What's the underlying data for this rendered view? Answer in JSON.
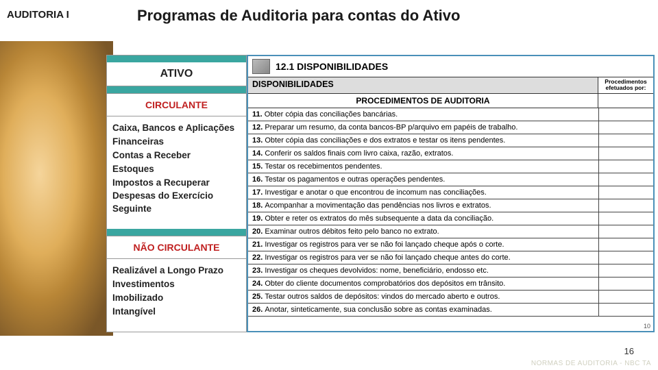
{
  "header": {
    "course_label": "AUDITORIA I",
    "page_title": "Programas de Auditoria para contas do Ativo"
  },
  "ativo_panel": {
    "teal_color": "#3aa6a0",
    "header": "ATIVO",
    "circulante_label": "CIRCULANTE",
    "circulante_items": [
      "Caixa, Bancos e Aplicações",
      "Financeiras",
      "Contas a Receber",
      "Estoques",
      "Impostos a Recuperar",
      "Despesas do Exercício Seguinte"
    ],
    "nao_circulante_label": "NÃO CIRCULANTE",
    "nao_circulante_items": [
      "Realizável a Longo Prazo",
      "Investimentos",
      "Imobilizado",
      "Intangível"
    ]
  },
  "proc_panel": {
    "border_color": "#4a90b8",
    "section_title": "12.1 DISPONIBILIDADES",
    "disponibilidades_label": "DISPONIBILIDADES",
    "right_header": "Procedimentos efetuados por:",
    "sub_header": "PROCEDIMENTOS DE AUDITORIA",
    "rows": [
      {
        "n": "11.",
        "t": "Obter cópia das conciliações bancárias."
      },
      {
        "n": "12.",
        "t": "Preparar um resumo, da conta bancos-BP p/arquivo em papéis de trabalho."
      },
      {
        "n": "13.",
        "t": "Obter cópia das conciliações e dos extratos e testar os itens pendentes."
      },
      {
        "n": "14.",
        "t": "Conferir os saldos finais com livro caixa, razão, extratos."
      },
      {
        "n": "15.",
        "t": "Testar os recebimentos pendentes."
      },
      {
        "n": "16.",
        "t": "Testar os pagamentos e outras operações pendentes."
      },
      {
        "n": "17.",
        "t": "Investigar e anotar o que encontrou de incomum nas conciliações."
      },
      {
        "n": "18.",
        "t": "Acompanhar a movimentação das pendências nos livros e extratos."
      },
      {
        "n": "19.",
        "t": "Obter e reter os extratos do mês subsequente a data da conciliação."
      },
      {
        "n": "20.",
        "t": "Examinar outros débitos feito pelo banco no extrato."
      },
      {
        "n": "21.",
        "t": "Investigar os registros para ver se não foi lançado cheque após o corte."
      },
      {
        "n": "22.",
        "t": "Investigar os registros para ver se não foi lançado cheque antes do corte."
      },
      {
        "n": "23.",
        "t": "Investigar os cheques devolvidos: nome, beneficiário, endosso etc."
      },
      {
        "n": "24.",
        "t": "Obter do cliente documentos comprobatórios dos depósitos em trânsito."
      },
      {
        "n": "25.",
        "t": "Testar outros saldos de depósitos: vindos do mercado aberto e outros."
      },
      {
        "n": "26.",
        "t": "Anotar, sinteticamente, sua conclusão sobre as contas examinadas."
      }
    ],
    "corner_number": "10"
  },
  "footer": {
    "page_number": "16",
    "footer_text": "NORMAS DE AUDITORIA - NBC TA"
  }
}
